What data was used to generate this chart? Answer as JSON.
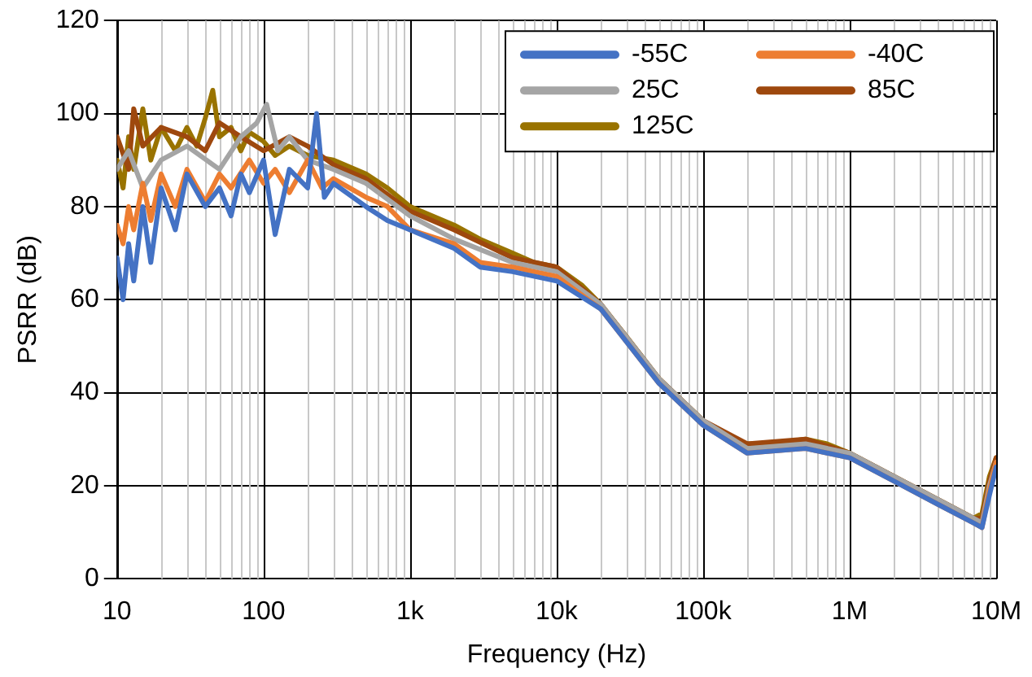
{
  "chart_data": {
    "type": "line",
    "xlabel": "Frequency (Hz)",
    "ylabel": "PSRR (dB)",
    "log": "x",
    "xlim": [
      10,
      10000000
    ],
    "xticks": [
      10,
      100,
      {
        "value": 1000,
        "label": "1k"
      },
      {
        "value": 10000,
        "label": "10k"
      },
      {
        "value": 100000,
        "label": "100k"
      },
      {
        "value": 1000000,
        "label": "1M"
      },
      {
        "value": 10000000,
        "label": "10M"
      }
    ],
    "ylim": [
      0,
      120
    ],
    "yticks": [
      0,
      20,
      40,
      60,
      80,
      100,
      120
    ],
    "grid": true,
    "legend": "top right",
    "marker": "none",
    "line_style": "solid",
    "series": [
      {
        "name": "-55C",
        "color": "#4472c4",
        "x": [
          10,
          11,
          12,
          13,
          15,
          17,
          20,
          25,
          30,
          40,
          50,
          60,
          70,
          80,
          100,
          120,
          150,
          200,
          230,
          260,
          300,
          500,
          700,
          1000,
          2000,
          3000,
          5000,
          10000,
          20000,
          50000,
          100000,
          200000,
          500000,
          1000000,
          2000000,
          4000000,
          7000000,
          8000000,
          9000000,
          10000000
        ],
        "values": [
          69,
          60,
          72,
          64,
          80,
          68,
          84,
          75,
          87,
          80,
          84,
          78,
          87,
          83,
          90,
          74,
          88,
          84,
          100,
          82,
          85,
          80,
          77,
          75,
          71,
          67,
          66,
          64,
          58,
          42,
          33,
          27,
          28,
          26,
          21,
          16,
          12,
          11,
          18,
          24
        ]
      },
      {
        "name": "-40C",
        "color": "#ed7d31",
        "x": [
          10,
          11,
          12,
          13,
          15,
          17,
          20,
          25,
          30,
          40,
          50,
          60,
          80,
          100,
          120,
          150,
          200,
          250,
          300,
          500,
          700,
          1000,
          2000,
          3000,
          5000,
          7000,
          10000,
          20000,
          50000,
          100000,
          200000,
          500000,
          1000000,
          2000000,
          4000000,
          7000000,
          8000000,
          9000000,
          10000000
        ],
        "values": [
          76,
          72,
          80,
          75,
          85,
          77,
          87,
          80,
          88,
          81,
          87,
          84,
          90,
          85,
          88,
          83,
          90,
          84,
          86,
          82,
          80,
          75,
          72,
          68,
          67,
          66,
          65,
          58,
          42,
          33,
          27,
          28,
          26,
          21,
          16,
          12,
          11,
          19,
          25
        ]
      },
      {
        "name": "25C",
        "color": "#a5a5a5",
        "x": [
          10,
          12,
          15,
          20,
          30,
          50,
          70,
          90,
          105,
          125,
          150,
          200,
          300,
          500,
          1000,
          2000,
          5000,
          10000,
          20000,
          50000,
          100000,
          200000,
          500000,
          1000000,
          2000000,
          4000000,
          7000000,
          8000000,
          9000000,
          10000000
        ],
        "values": [
          88,
          92,
          84,
          90,
          93,
          88,
          95,
          98,
          102,
          92,
          95,
          90,
          88,
          85,
          78,
          73,
          68,
          66,
          59,
          43,
          34,
          28,
          29,
          27,
          22,
          17,
          13,
          12,
          20,
          25
        ]
      },
      {
        "name": "85C",
        "color": "#9e480e",
        "x": [
          10,
          12,
          13,
          15,
          20,
          30,
          40,
          50,
          70,
          100,
          150,
          200,
          300,
          500,
          1000,
          2000,
          5000,
          10000,
          20000,
          50000,
          100000,
          200000,
          500000,
          1000000,
          2000000,
          4000000,
          7000000,
          8000000,
          9000000,
          10000000
        ],
        "values": [
          95,
          88,
          101,
          93,
          97,
          95,
          92,
          98,
          95,
          92,
          95,
          93,
          89,
          86,
          79,
          75,
          69,
          67,
          59,
          43,
          34,
          29,
          30,
          27,
          22,
          17,
          13,
          13,
          21,
          26
        ]
      },
      {
        "name": "125C",
        "color": "#997300",
        "x": [
          10,
          11,
          12,
          13,
          15,
          17,
          20,
          25,
          30,
          35,
          40,
          45,
          50,
          60,
          70,
          80,
          100,
          120,
          150,
          200,
          300,
          500,
          700,
          1000,
          2000,
          3000,
          5000,
          7000,
          10000,
          15000,
          20000,
          30000,
          50000,
          100000,
          150000,
          200000,
          300000,
          500000,
          700000,
          1000000,
          2000000,
          4000000,
          7000000,
          8000000,
          9000000,
          10000000
        ],
        "values": [
          90,
          84,
          95,
          88,
          101,
          90,
          97,
          92,
          97,
          93,
          99,
          105,
          95,
          97,
          92,
          96,
          94,
          91,
          93,
          91,
          90,
          87,
          84,
          80,
          76,
          73,
          70,
          68,
          67,
          63,
          59,
          52,
          43,
          34,
          30,
          29,
          29,
          30,
          29,
          27,
          22,
          17,
          13,
          14,
          22,
          26
        ]
      }
    ]
  }
}
